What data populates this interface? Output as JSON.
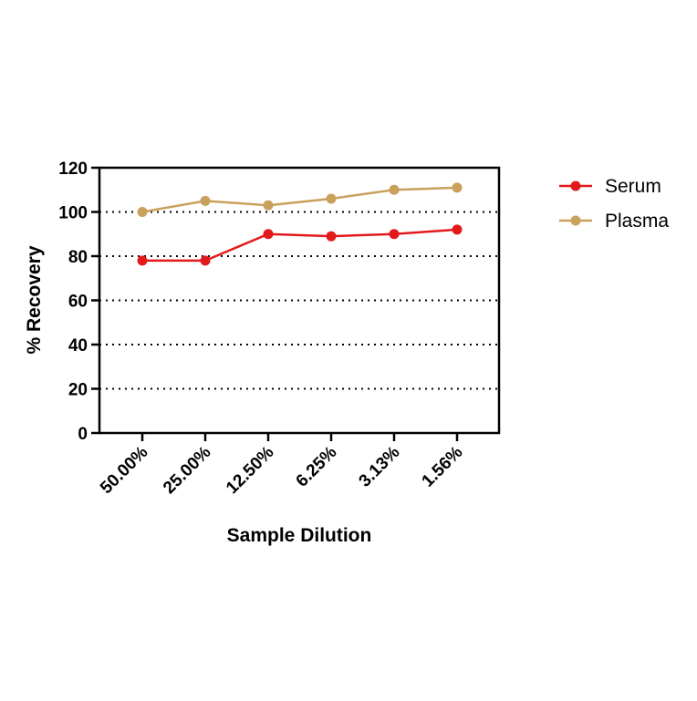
{
  "chart_data": {
    "type": "line",
    "title": "",
    "xlabel": "Sample Dilution",
    "ylabel": "% Recovery",
    "categories": [
      "50.00%",
      "25.00%",
      "12.50%",
      "6.25%",
      "3.13%",
      "1.56%"
    ],
    "ylim": [
      0,
      120
    ],
    "yticks": [
      "0",
      "20",
      "40",
      "60",
      "80",
      "100",
      "120"
    ],
    "grid": "horizontal dotted",
    "legend_position": "right",
    "series": [
      {
        "name": "Serum",
        "color": "#e31a1c",
        "values": [
          78,
          78,
          90,
          89,
          90,
          92
        ]
      },
      {
        "name": "Plasma",
        "color": "#c9a05c",
        "values": [
          100,
          105,
          103,
          106,
          110,
          111
        ]
      }
    ]
  }
}
